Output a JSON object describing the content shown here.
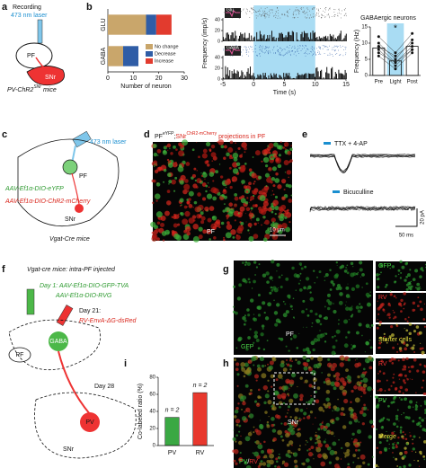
{
  "panels": {
    "a": {
      "label": "a",
      "recording": "Recording",
      "laser": "473 nm laser",
      "pf": "PF",
      "snr": "SNr",
      "mice": {
        "pre": "PV-ChR2",
        "sup": "SNr",
        "post": "mice"
      }
    },
    "b": {
      "label": "b"
    },
    "c": {
      "label": "c",
      "laser": "473 nm laser",
      "pf": "PF",
      "virus1": "AAV-Ef1α-DIO-eYFP",
      "virus2": "AAV-Ef1α-DIO-ChR2-mCherry",
      "snr": "SNr",
      "mice": "Vgat-Cre mice"
    },
    "d": {
      "label": "d",
      "title": {
        "pf": "PF",
        "pf_sup": "eYFP",
        "sep": ";",
        "snr": "SNr",
        "snr_sup": "ChR2-mCherry",
        "rest": "projections in PF"
      },
      "pf": "PF",
      "scale": "10 μm"
    },
    "e": {
      "label": "e",
      "cond1": "TTX + 4-AP",
      "cond2": "Bicuculline",
      "scale_y": "20 pA",
      "scale_x": "50 ms"
    },
    "f": {
      "label": "f",
      "mice": "Vgat-cre mice: intra-PF injected",
      "day1": "Day 1: AAV-Ef1α-DIO-GFP-TVA",
      "day1b": "AAV-Ef1α-DIO-RVG",
      "day21": "Day 21:",
      "day21b": "RV-EnvA-ΔG-dsRed",
      "gaba": "GABA",
      "pf": "PF",
      "day28": "Day 28",
      "pv": "PV",
      "snr": "SNr"
    },
    "g": {
      "label": "g",
      "pf": "PF",
      "gfp": "GFP",
      "side1": "GFP",
      "side2": "RV",
      "side3": "Starter cells"
    },
    "h": {
      "label": "h",
      "snr": "SNr",
      "pv": "PV",
      "sep": "/",
      "rv": "RV",
      "side1": "RV",
      "side2": "PV",
      "side3": "Merge"
    },
    "i": {
      "label": "i"
    }
  },
  "chart_data": [
    {
      "type": "stacked-hbar",
      "categories": [
        "GLU",
        "GABA"
      ],
      "series": [
        {
          "name": "No change",
          "color": "#c9a66b",
          "values": [
            15,
            6
          ]
        },
        {
          "name": "Decrease",
          "color": "#2f5da6",
          "values": [
            4,
            6
          ]
        },
        {
          "name": "Increase",
          "color": "#e23b2e",
          "values": [
            6,
            0
          ]
        }
      ],
      "xlim": [
        0,
        30
      ],
      "xticks": [
        0,
        10,
        20,
        30
      ],
      "xlabel": "Number of neuron"
    },
    {
      "type": "raster",
      "panels": [
        {
          "name": "Glu",
          "ylim": [
            0,
            40
          ],
          "yticks": [
            0,
            20,
            40
          ]
        },
        {
          "name": "GABA",
          "ylim": [
            0,
            40
          ],
          "yticks": [
            0,
            20,
            40
          ]
        }
      ],
      "ylabel": "Frequency (imp/s)",
      "xlabel": "Time (s)",
      "xlim": [
        -5,
        15
      ],
      "xticks": [
        -5,
        0,
        5,
        10,
        15
      ],
      "light_on": [
        0,
        10
      ],
      "light_color": "#a9dcf3"
    },
    {
      "type": "paired-dots",
      "title": "GABAergic neurons",
      "categories": [
        "Pre",
        "Light",
        "Post"
      ],
      "values": [
        8.5,
        4.5,
        9
      ],
      "neurons": [
        [
          10,
          5,
          11
        ],
        [
          9,
          4,
          9
        ],
        [
          8,
          3,
          8
        ],
        [
          12,
          7,
          13
        ],
        [
          6,
          2,
          7
        ],
        [
          7,
          4,
          8
        ],
        [
          9,
          6,
          10
        ]
      ],
      "ylim": [
        0,
        15
      ],
      "yticks": [
        0,
        5,
        10,
        15
      ],
      "ylabel": "Frequency (Hz)",
      "annotation": "*",
      "highlight_color": "#a9dcf3"
    },
    {
      "type": "bar",
      "categories": [
        "PV",
        "RV"
      ],
      "values": [
        33,
        62
      ],
      "colors": [
        "#3aa843",
        "#e8382d"
      ],
      "ylim": [
        0,
        80
      ],
      "yticks": [
        0,
        20,
        40,
        60,
        80
      ],
      "ylabel": "Co-labeled ratio (%)",
      "annotations": [
        "n = 2",
        "n = 2"
      ]
    }
  ]
}
